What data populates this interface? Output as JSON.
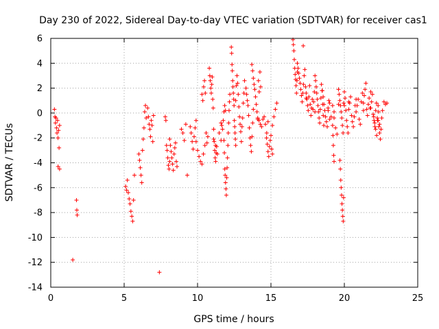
{
  "chart_data": {
    "type": "scatter",
    "title": "Day 230 of 2022, Sidereal Day-to-day VTEC variation (SDTVAR) for receiver cas1",
    "xlabel": "GPS time / hours",
    "ylabel": "SDTVAR / TECUs",
    "xlim": [
      0,
      25
    ],
    "ylim": [
      -14,
      6
    ],
    "xticks": [
      0,
      5,
      10,
      15,
      20,
      25
    ],
    "yticks": [
      -14,
      -12,
      -10,
      -8,
      -6,
      -4,
      -2,
      0,
      2,
      4,
      6
    ],
    "grid": true,
    "marker": "+",
    "series_color": "#ff0000",
    "segments": [
      {
        "x0": 0.25,
        "x1": 0.6,
        "ys": [
          0.3,
          -0.3,
          -0.8,
          -0.4,
          -1.2,
          -1.6,
          -0.6,
          -2.0,
          -1.4,
          -2.8,
          -1.0
        ]
      },
      {
        "x0": 0.5,
        "x1": 0.6,
        "ys": [
          -4.3,
          -4.5
        ]
      },
      {
        "x0": 1.75,
        "x1": 1.8,
        "ys": [
          -7.0,
          -7.8,
          -8.2
        ]
      },
      {
        "x0": 1.5,
        "x1": 1.5,
        "ys": [
          -11.8
        ]
      },
      {
        "x0": 5.1,
        "x1": 5.7,
        "ys": [
          -5.9,
          -6.2,
          -5.4,
          -6.4,
          -6.9,
          -7.3,
          -7.9,
          -8.3,
          -8.7,
          -7.0,
          -5.0
        ]
      },
      {
        "x0": 6.0,
        "x1": 6.5,
        "ys": [
          -3.3,
          -3.8,
          -4.4,
          -5.0,
          -5.6,
          -3.0,
          -2.1,
          -1.2,
          0.1,
          0.6,
          -0.4
        ]
      },
      {
        "x0": 6.6,
        "x1": 7.0,
        "ys": [
          0.4,
          -0.3,
          -0.9,
          -1.3,
          -1.9,
          -0.6,
          -1.0,
          -2.3,
          -0.2
        ]
      },
      {
        "x0": 7.4,
        "x1": 7.4,
        "ys": [
          -12.8
        ]
      },
      {
        "x0": 7.8,
        "x1": 8.1,
        "ys": [
          -0.3,
          -0.6,
          -2.6,
          -3.0,
          -3.6,
          -4.2,
          -4.5,
          -3.9
        ]
      },
      {
        "x0": 8.1,
        "x1": 8.6,
        "ys": [
          -2.1,
          -2.6,
          -3.1,
          -3.6,
          -4.1,
          -4.6,
          -3.3,
          -2.8,
          -2.4,
          -3.9,
          -4.3
        ]
      },
      {
        "x0": 8.9,
        "x1": 9.2,
        "ys": [
          -1.3,
          -1.6,
          -2.2,
          -0.9
        ]
      },
      {
        "x0": 9.3,
        "x1": 9.3,
        "ys": [
          -5.0
        ]
      },
      {
        "x0": 9.5,
        "x1": 9.9,
        "ys": [
          -1.1,
          -1.6,
          -2.3,
          -2.9,
          -1.9,
          -1.2,
          -0.6
        ]
      },
      {
        "x0": 9.9,
        "x1": 10.5,
        "ys": [
          -2.3,
          -3.0,
          -3.5,
          -3.9,
          -4.1,
          -3.3,
          -2.6
        ]
      },
      {
        "x0": 10.3,
        "x1": 10.7,
        "ys": [
          1.5,
          1.0,
          2.1,
          2.6,
          1.6,
          -1.6,
          -2.4,
          -1.9
        ]
      },
      {
        "x0": 10.8,
        "x1": 11.3,
        "ys": [
          3.6,
          3.0,
          2.6,
          2.0,
          1.6,
          2.3,
          2.9,
          1.1,
          0.4,
          -1.3,
          -2.3,
          -3.0,
          -3.6,
          -3.9,
          -3.2,
          -2.7
        ]
      },
      {
        "x0": 11.1,
        "x1": 11.6,
        "ys": [
          -2.1,
          -2.6,
          -3.3,
          -1.6,
          -2.2
        ]
      },
      {
        "x0": 11.6,
        "x1": 11.9,
        "ys": [
          -0.8,
          -1.0,
          -1.3,
          -0.6,
          0.1,
          0.6,
          0.2
        ]
      },
      {
        "x0": 11.8,
        "x1": 12.2,
        "ys": [
          -2.2,
          -3.2,
          -4.5,
          -5.0,
          -5.6,
          -6.1,
          -6.6,
          -5.2,
          -4.4,
          -3.6,
          -2.6,
          -1.6,
          -0.8,
          0.2,
          0.9,
          1.5
        ]
      },
      {
        "x0": 12.3,
        "x1": 12.6,
        "ys": [
          5.3,
          4.8,
          3.9,
          3.4,
          2.6,
          2.1,
          1.6,
          1.1,
          0.6,
          -0.6,
          -1.1,
          -1.6,
          -2.1,
          -2.6
        ]
      },
      {
        "x0": 12.6,
        "x1": 13.2,
        "ys": [
          1.0,
          2.2,
          3.0,
          2.4,
          1.5,
          0.5,
          -0.3,
          -0.9,
          -1.5,
          -2.3,
          -1.1,
          -0.4,
          0.8,
          1.6,
          2.6
        ]
      },
      {
        "x0": 13.3,
        "x1": 13.8,
        "ys": [
          2.0,
          1.5,
          1.0,
          0.6,
          -0.2,
          -1.2,
          -2.0,
          -2.6,
          -3.1,
          -1.9,
          -0.8,
          0.3
        ]
      },
      {
        "x0": 13.7,
        "x1": 14.3,
        "ys": [
          3.9,
          3.4,
          2.8,
          2.3,
          1.9,
          1.3,
          0.7,
          0.1,
          -0.5,
          2.6,
          1.7,
          3.3,
          2.1
        ]
      },
      {
        "x0": 14.1,
        "x1": 14.8,
        "ys": [
          -0.4,
          -0.6,
          -0.9,
          -1.1,
          -0.5,
          -0.3,
          -0.9,
          -1.6,
          -0.7
        ]
      },
      {
        "x0": 14.7,
        "x1": 15.1,
        "ys": [
          -2.0,
          -2.5,
          -3.1,
          -3.5,
          -2.7,
          -2.2,
          -1.8,
          -2.9,
          -3.3
        ]
      },
      {
        "x0": 15.1,
        "x1": 15.4,
        "ys": [
          -1.0,
          -0.3,
          0.3,
          0.8
        ]
      },
      {
        "x0": 16.5,
        "x1": 16.8,
        "ys": [
          5.9,
          5.5,
          5.0,
          4.3,
          3.6,
          3.1,
          2.7,
          2.2,
          1.6,
          2.6,
          3.3
        ]
      },
      {
        "x0": 16.8,
        "x1": 17.4,
        "ys": [
          4.0,
          3.6,
          3.2,
          2.8,
          2.4,
          1.9,
          1.4,
          0.9,
          1.6,
          2.3,
          3.0,
          3.5,
          2.1,
          1.2
        ]
      },
      {
        "x0": 17.2,
        "x1": 17.3,
        "ys": [
          5.4
        ]
      },
      {
        "x0": 17.4,
        "x1": 18.0,
        "ys": [
          1.6,
          1.1,
          0.6,
          0.2,
          1.3,
          2.2,
          0.7,
          -0.2,
          0.4,
          1.1,
          0.3,
          0.9,
          1.7,
          0.1
        ]
      },
      {
        "x0": 18.0,
        "x1": 18.6,
        "ys": [
          3.0,
          2.6,
          2.1,
          1.6,
          1.1,
          0.6,
          0.1,
          -0.4,
          -0.8,
          0.3,
          1.2,
          2.3,
          1.8,
          0.7,
          -0.2,
          -1.0
        ]
      },
      {
        "x0": 18.5,
        "x1": 19.0,
        "ys": [
          1.8,
          1.3,
          0.7,
          0.2,
          -0.3,
          -0.7,
          -1.1,
          0.4,
          1.0,
          -0.5
        ]
      },
      {
        "x0": 18.9,
        "x1": 19.3,
        "ys": [
          0.2,
          0.8,
          -0.3,
          0.6,
          0.1
        ]
      },
      {
        "x0": 19.2,
        "x1": 19.3,
        "ys": [
          -1.0,
          -1.8,
          -2.6,
          -3.4,
          -3.9
        ]
      },
      {
        "x0": 19.3,
        "x1": 19.6,
        "ys": [
          -0.4,
          -1.2,
          -1.7,
          0.7
        ]
      },
      {
        "x0": 19.6,
        "x1": 20.0,
        "ys": [
          1.9,
          1.5,
          1.0,
          0.6,
          0.1,
          -0.4,
          -1.0,
          -1.6,
          0.8,
          1.7
        ]
      },
      {
        "x0": 19.7,
        "x1": 19.95,
        "ys": [
          -3.8,
          -4.5,
          -5.4,
          -6.0,
          -6.6,
          -7.3,
          -7.8,
          -8.3,
          -8.7,
          -6.8
        ]
      },
      {
        "x0": 20.0,
        "x1": 20.3,
        "ys": [
          0.6,
          1.2,
          0.2,
          -0.6,
          -1.1,
          -1.6,
          0.9
        ]
      },
      {
        "x0": 20.3,
        "x1": 20.8,
        "ys": [
          0.3,
          0.8,
          1.3,
          -0.2,
          -0.7,
          -1.1,
          -0.3,
          0.6,
          1.1
        ]
      },
      {
        "x0": 20.8,
        "x1": 21.3,
        "ys": [
          0.1,
          0.6,
          1.1,
          -0.5,
          -0.9,
          0.9,
          1.6,
          0.2
        ]
      },
      {
        "x0": 21.3,
        "x1": 21.8,
        "ys": [
          0.8,
          1.4,
          1.9,
          2.4,
          0.3,
          -0.2,
          0.7,
          1.2,
          0.4,
          1.7
        ]
      },
      {
        "x0": 21.8,
        "x1": 22.3,
        "ys": [
          0.4,
          0.9,
          1.5,
          -0.1,
          -0.6,
          -1.1,
          0.2,
          0.8,
          -0.4,
          0.6
        ]
      },
      {
        "x0": 22.0,
        "x1": 22.4,
        "ys": [
          -0.3,
          -0.8,
          -1.3,
          -1.8,
          -0.6,
          0.1,
          -0.9
        ]
      },
      {
        "x0": 22.3,
        "x1": 22.6,
        "ys": [
          -0.6,
          -1.1,
          -1.6,
          -2.1,
          -1.3,
          -0.4,
          0.2
        ]
      },
      {
        "x0": 22.7,
        "x1": 22.9,
        "ys": [
          0.9,
          0.7,
          0.8
        ]
      }
    ]
  }
}
